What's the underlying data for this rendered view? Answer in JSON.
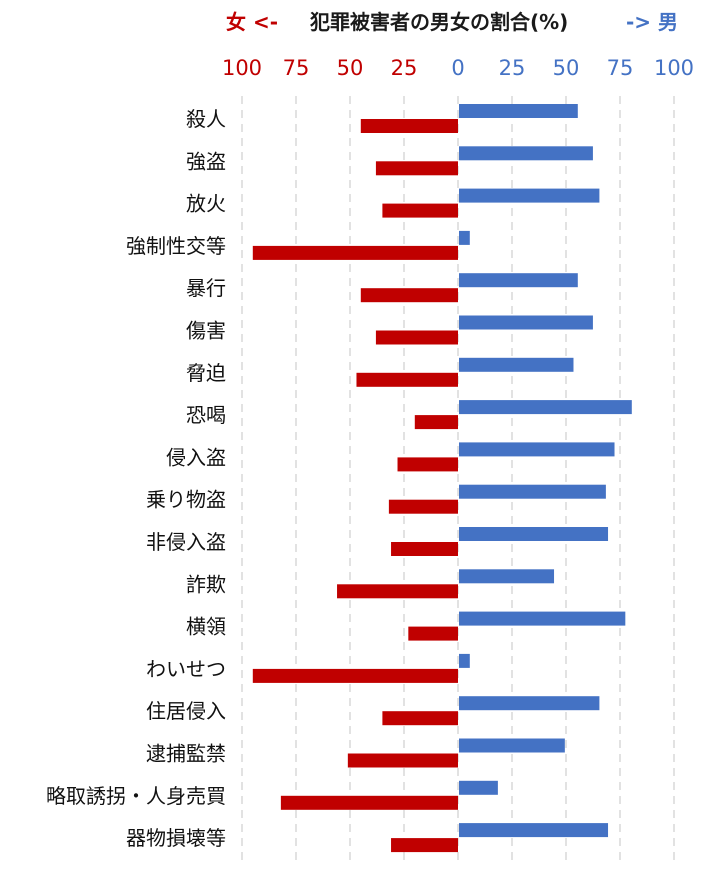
{
  "chart_data": {
    "type": "bar",
    "title": "犯罪被害者の男女の割合(%)",
    "female_label": "女 <-",
    "male_label": "-> 男",
    "xlim": [
      -100,
      100
    ],
    "female_tick_labels": [
      "100",
      "75",
      "50",
      "25"
    ],
    "zero_label": "0",
    "male_tick_labels": [
      "25",
      "50",
      "75",
      "100"
    ],
    "grid": true,
    "categories": [
      "殺人",
      "強盗",
      "放火",
      "強制性交等",
      "暴行",
      "傷害",
      "脅迫",
      "恐喝",
      "侵入盗",
      "乗り物盗",
      "非侵入盗",
      "詐欺",
      "横領",
      "わいせつ",
      "住居侵入",
      "逮捕監禁",
      "略取誘拐・人身売買",
      "器物損壊等"
    ],
    "series": [
      {
        "name": "女",
        "color": "#c00000",
        "values": [
          45,
          38,
          35,
          95,
          45,
          38,
          47,
          20,
          28,
          32,
          31,
          56,
          23,
          95,
          35,
          51,
          82,
          31
        ]
      },
      {
        "name": "男",
        "color": "#4472c4",
        "values": [
          55,
          62,
          65,
          5,
          55,
          62,
          53,
          80,
          72,
          68,
          69,
          44,
          77,
          5,
          65,
          49,
          18,
          69
        ]
      }
    ]
  }
}
